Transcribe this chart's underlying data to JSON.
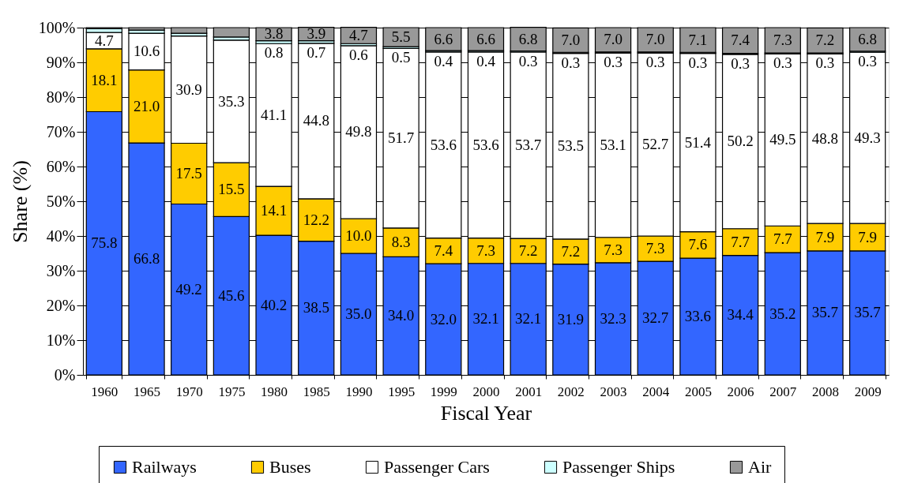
{
  "chart_data": {
    "type": "bar",
    "stacked": true,
    "xlabel": "Fiscal Year",
    "ylabel": "Share (%)",
    "categories": [
      "1960",
      "1965",
      "1970",
      "1975",
      "1980",
      "1985",
      "1990",
      "1995",
      "1999",
      "2000",
      "2001",
      "2002",
      "2003",
      "2004",
      "2005",
      "2006",
      "2007",
      "2008",
      "2009"
    ],
    "ylim": [
      0,
      100
    ],
    "yticks": [
      {
        "value": 0,
        "label": "0%"
      },
      {
        "value": 10,
        "label": "10%"
      },
      {
        "value": 20,
        "label": "20%"
      },
      {
        "value": 30,
        "label": "30%"
      },
      {
        "value": 40,
        "label": "40%"
      },
      {
        "value": 50,
        "label": "50%"
      },
      {
        "value": 60,
        "label": "60%"
      },
      {
        "value": 70,
        "label": "70%"
      },
      {
        "value": 80,
        "label": "80%"
      },
      {
        "value": 90,
        "label": "90%"
      },
      {
        "value": 100,
        "label": "100%"
      }
    ],
    "grid": "y",
    "legend": "bottom",
    "series": [
      {
        "name": "Railways",
        "color": "#3366ff",
        "values": [
          75.8,
          66.8,
          49.2,
          45.6,
          40.2,
          38.5,
          35.0,
          34.0,
          32.0,
          32.1,
          32.1,
          31.9,
          32.3,
          32.7,
          33.6,
          34.4,
          35.2,
          35.7,
          35.7
        ],
        "value_labels": [
          "75.8",
          "66.8",
          "49.2",
          "45.6",
          "40.2",
          "38.5",
          "35.0",
          "34.0",
          "32.0",
          "32.1",
          "32.1",
          "31.9",
          "32.3",
          "32.7",
          "33.6",
          "34.4",
          "35.2",
          "35.7",
          "35.7"
        ]
      },
      {
        "name": "Buses",
        "color": "#ffcc00",
        "values": [
          18.1,
          21.0,
          17.5,
          15.5,
          14.1,
          12.2,
          10.0,
          8.3,
          7.4,
          7.3,
          7.2,
          7.2,
          7.3,
          7.3,
          7.6,
          7.7,
          7.7,
          7.9,
          7.9
        ],
        "value_labels": [
          "18.1",
          "21.0",
          "17.5",
          "15.5",
          "14.1",
          "12.2",
          "10.0",
          "8.3",
          "7.4",
          "7.3",
          "7.2",
          "7.2",
          "7.3",
          "7.3",
          "7.6",
          "7.7",
          "7.7",
          "7.9",
          "7.9"
        ]
      },
      {
        "name": "Passenger Cars",
        "color": "#ffffff",
        "values": [
          4.7,
          10.6,
          30.9,
          35.3,
          41.1,
          44.8,
          49.8,
          51.7,
          53.6,
          53.6,
          53.7,
          53.5,
          53.1,
          52.7,
          51.4,
          50.2,
          49.5,
          48.8,
          49.3
        ],
        "value_labels": [
          "4.7",
          "10.6",
          "30.9",
          "35.3",
          "41.1",
          "44.8",
          "49.8",
          "51.7",
          "53.6",
          "53.6",
          "53.7",
          "53.5",
          "53.1",
          "52.7",
          "51.4",
          "50.2",
          "49.5",
          "48.8",
          "49.3"
        ]
      },
      {
        "name": "Passenger Ships",
        "color": "#ccffff",
        "values": [
          1.1,
          0.9,
          0.8,
          0.9,
          0.8,
          0.7,
          0.6,
          0.5,
          0.4,
          0.4,
          0.3,
          0.3,
          0.3,
          0.3,
          0.3,
          0.3,
          0.3,
          0.3,
          0.3
        ],
        "value_labels": [
          null,
          null,
          null,
          null,
          "0.8",
          "0.7",
          "0.6",
          "0.5",
          "0.4",
          "0.4",
          "0.3",
          "0.3",
          "0.3",
          "0.3",
          "0.3",
          "0.3",
          "0.3",
          "0.3",
          "0.3"
        ]
      },
      {
        "name": "Air",
        "color": "#999999",
        "values": [
          0.3,
          0.7,
          1.6,
          2.7,
          3.8,
          3.9,
          4.7,
          5.5,
          6.6,
          6.6,
          6.8,
          7.0,
          7.0,
          7.0,
          7.1,
          7.4,
          7.3,
          7.2,
          6.8
        ],
        "value_labels": [
          null,
          null,
          null,
          null,
          "3.8",
          "3.9",
          "4.7",
          "5.5",
          "6.6",
          "6.6",
          "6.8",
          "7.0",
          "7.0",
          "7.0",
          "7.1",
          "7.4",
          "7.3",
          "7.2",
          "6.8"
        ]
      }
    ]
  }
}
